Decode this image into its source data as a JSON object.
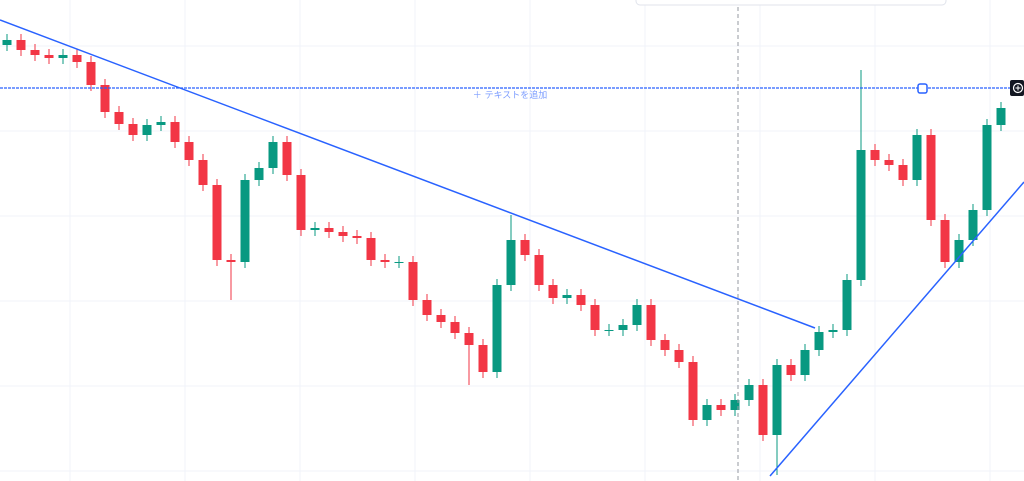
{
  "chart_data": {
    "type": "candlestick",
    "annotation": "＋ テキストを追加",
    "up_color": "#089981",
    "down_color": "#f23645",
    "ylim": [
      0,
      481
    ],
    "open": [
      436,
      441,
      431,
      426,
      423,
      426,
      419,
      396,
      369,
      357,
      346,
      356,
      359,
      339,
      321,
      296,
      221,
      219,
      301,
      313,
      339,
      306,
      251,
      253,
      249,
      245,
      243,
      221,
      219,
      219,
      181,
      166,
      159,
      148,
      136,
      109,
      196,
      241,
      226,
      196,
      183,
      186,
      176,
      151,
      151,
      156,
      176,
      141,
      131,
      119,
      61,
      76,
      71,
      81,
      96,
      46,
      116,
      106,
      131,
      149,
      151,
      201,
      331,
      321,
      316,
      301,
      346,
      261,
      219,
      241,
      271,
      356
    ],
    "high": [
      447,
      447,
      437,
      432,
      432,
      432,
      425,
      402,
      375,
      363,
      362,
      365,
      365,
      345,
      327,
      302,
      227,
      307,
      319,
      345,
      345,
      312,
      259,
      259,
      255,
      251,
      249,
      227,
      225,
      225,
      187,
      172,
      165,
      154,
      142,
      202,
      266,
      247,
      232,
      202,
      192,
      192,
      182,
      157,
      162,
      182,
      182,
      147,
      137,
      125,
      82,
      82,
      87,
      102,
      102,
      122,
      122,
      137,
      155,
      157,
      207,
      411,
      337,
      327,
      322,
      352,
      352,
      267,
      247,
      277,
      362,
      379
    ],
    "low": [
      430,
      425,
      420,
      417,
      417,
      413,
      390,
      363,
      351,
      340,
      340,
      350,
      333,
      315,
      290,
      215,
      181,
      213,
      295,
      307,
      300,
      245,
      245,
      243,
      239,
      237,
      215,
      213,
      213,
      175,
      160,
      153,
      142,
      96,
      103,
      103,
      190,
      220,
      190,
      177,
      177,
      170,
      145,
      145,
      145,
      150,
      135,
      125,
      113,
      55,
      55,
      65,
      65,
      75,
      40,
      6,
      100,
      100,
      125,
      143,
      145,
      195,
      315,
      310,
      295,
      295,
      255,
      213,
      213,
      235,
      265,
      350
    ],
    "close": [
      441,
      431,
      426,
      423,
      426,
      419,
      396,
      369,
      357,
      346,
      356,
      359,
      339,
      321,
      296,
      221,
      219,
      301,
      313,
      339,
      306,
      251,
      253,
      249,
      245,
      243,
      221,
      219,
      219,
      181,
      166,
      159,
      148,
      136,
      109,
      196,
      241,
      226,
      196,
      183,
      186,
      176,
      151,
      151,
      156,
      176,
      141,
      131,
      119,
      61,
      76,
      71,
      81,
      96,
      46,
      116,
      106,
      131,
      149,
      151,
      201,
      331,
      321,
      316,
      301,
      346,
      261,
      219,
      241,
      271,
      356,
      373
    ]
  }
}
